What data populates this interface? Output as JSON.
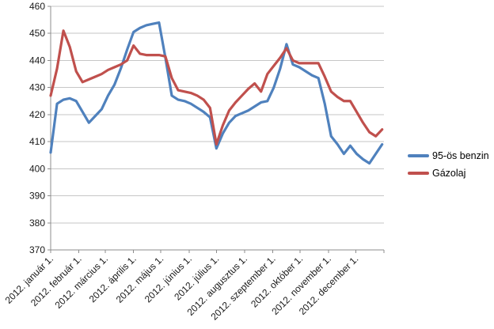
{
  "chart_data": {
    "type": "line",
    "grid": "horizontal",
    "legend_position": "right",
    "x_frequency": "weekly",
    "ylim": [
      370,
      460
    ],
    "y_axis": {
      "min": 370,
      "max": 460,
      "step": 10,
      "tick_labels": [
        "370",
        "380",
        "390",
        "400",
        "410",
        "420",
        "430",
        "440",
        "450",
        "460"
      ]
    },
    "x_axis": {
      "tick_labels": [
        "2012. január 1.",
        "2012. február 1.",
        "2012. március 1.",
        "2012. április 1.",
        "2012. május 1.",
        "2012. június 1.",
        "2012. július 1.",
        "2012. augusztus 1.",
        "2012. szeptember 1.",
        "2012. október 1.",
        "2012. november 1.",
        "2012. december 1."
      ]
    },
    "colors": {
      "benzin": "#4F81BD",
      "gazolaj": "#C0504D",
      "grid": "#C6C6C6",
      "axis": "#8C8C8C",
      "text": "#1A1A1A"
    },
    "series": [
      {
        "name": "95-ös benzin",
        "color": "#4F81BD",
        "values": [
          406,
          424,
          425.5,
          426,
          425,
          421,
          417,
          419.5,
          422,
          427,
          431,
          437,
          444,
          450.5,
          452,
          453,
          453.5,
          454,
          441,
          427,
          425.5,
          425,
          424,
          422.5,
          421,
          419,
          407.5,
          413,
          417,
          419.5,
          420.5,
          421.5,
          423,
          424.5,
          425,
          430,
          437,
          446,
          438.5,
          437.5,
          436,
          434.5,
          433.5,
          424,
          412,
          409,
          405.5,
          408.5,
          405.5,
          403.5,
          402,
          405.5,
          409
        ]
      },
      {
        "name": "Gázolaj",
        "color": "#C0504D",
        "values": [
          427,
          437,
          451,
          445,
          436,
          432,
          433,
          434,
          435,
          436.5,
          437.5,
          438.5,
          440,
          445.5,
          442.5,
          442,
          442,
          442,
          441.5,
          433.5,
          429,
          428.5,
          428,
          427,
          425.5,
          422.5,
          409,
          416,
          421.5,
          424.5,
          427,
          429.5,
          431.5,
          428.5,
          435,
          438,
          441,
          444.5,
          440,
          439,
          439,
          439,
          439,
          434,
          428.5,
          426.5,
          425,
          425,
          421,
          417,
          413.5,
          412,
          414.5
        ]
      }
    ]
  }
}
